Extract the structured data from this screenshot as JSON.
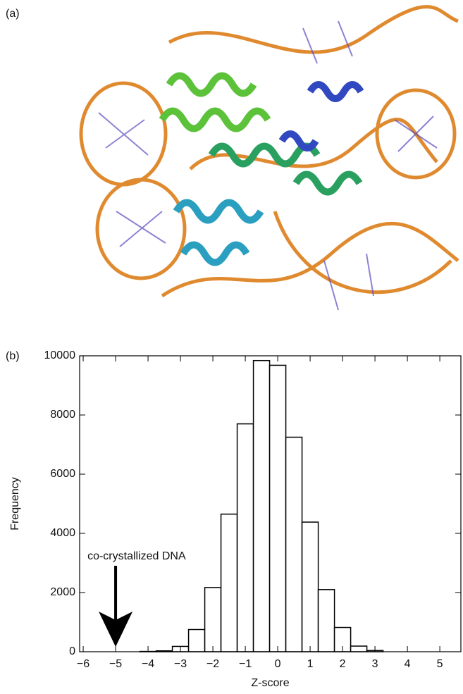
{
  "panel_a_label": "(a)",
  "chart_data": {
    "type": "histogram",
    "panel_label": "(b)",
    "x_label": "Z-score",
    "y_label": "Frequency",
    "bins": [
      -4.25,
      -3.75,
      -3.25,
      -2.75,
      -2.25,
      -1.75,
      -1.25,
      -0.75,
      -0.25,
      0.25,
      0.75,
      1.25,
      1.75,
      2.25,
      2.75,
      3.25
    ],
    "counts": [
      10,
      30,
      180,
      750,
      2170,
      4650,
      7700,
      9840,
      9680,
      7250,
      4380,
      2100,
      820,
      190,
      40
    ],
    "color": "#ffffff",
    "xlim": [
      -6.11,
      5.65
    ],
    "ylim": [
      0,
      10000
    ],
    "xticks": [
      {
        "value": -6,
        "label": "−6"
      },
      {
        "value": -5,
        "label": "−5"
      },
      {
        "value": -4,
        "label": "−4"
      },
      {
        "value": -3,
        "label": "−3"
      },
      {
        "value": -2,
        "label": "−2"
      },
      {
        "value": -1,
        "label": "−1"
      },
      0,
      1,
      2,
      3,
      4,
      5
    ],
    "yticks": [
      0,
      2000,
      4000,
      6000,
      8000,
      10000
    ],
    "annotation": {
      "text": "co-crystallized DNA",
      "x": -5
    }
  }
}
